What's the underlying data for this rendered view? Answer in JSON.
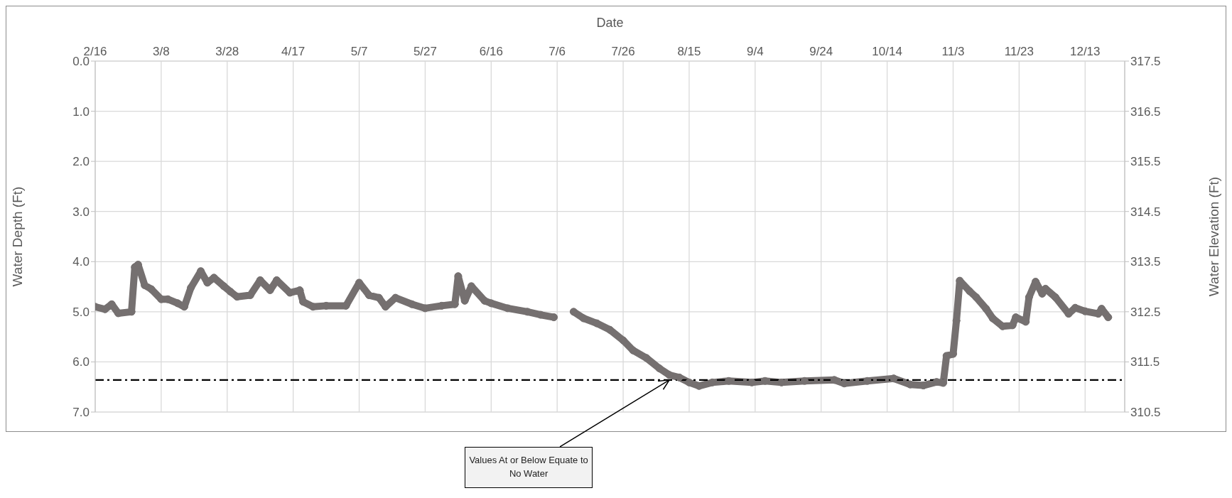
{
  "chart_data": {
    "type": "line",
    "xlabel": "Date",
    "ylabel": "Water Depth (Ft)",
    "y2label": "Water Elevation (Ft)",
    "x": [
      "--02-16",
      "--02-19",
      "--02-21",
      "--02-23",
      "--02-27",
      "--02-28",
      "--03-01",
      "--03-03",
      "--03-05",
      "--03-08",
      "--03-10",
      "--03-13",
      "--03-15",
      "--03-17",
      "--03-20",
      "--03-22",
      "--03-24",
      "--03-27",
      "--03-29",
      "--03-31",
      "--04-04",
      "--04-07",
      "--04-10",
      "--04-12",
      "--04-16",
      "--04-19",
      "--04-20",
      "--04-23",
      "--04-27",
      "--05-03",
      "--05-07",
      "--05-10",
      "--05-13",
      "--05-15",
      "--05-18",
      "--05-23",
      "--05-27",
      "--06-01",
      "--06-05",
      "--06-06",
      "--06-08",
      "--06-10",
      "--06-14",
      "--06-16",
      "--06-21",
      "--06-27",
      "--07-01",
      "--07-05",
      "--07-08",
      "--07-11",
      "--07-14",
      "--07-18",
      "--07-22",
      "--07-26",
      "--07-29",
      "--08-02",
      "--08-06",
      "--08-09",
      "--08-12",
      "--08-15",
      "--08-18",
      "--08-22",
      "--08-27",
      "--09-03",
      "--09-07",
      "--09-12",
      "--09-19",
      "--09-28",
      "--10-01",
      "--10-08",
      "--10-16",
      "--10-21",
      "--10-25",
      "--10-29",
      "--10-31",
      "--11-01",
      "--11-03",
      "--11-04",
      "--11-05",
      "--11-08",
      "--11-10",
      "--11-13",
      "--11-15",
      "--11-18",
      "--11-21",
      "--11-22",
      "--11-25",
      "--11-26",
      "--11-28",
      "--11-30",
      "--12-01",
      "--12-04",
      "--12-08",
      "--12-10",
      "--12-13",
      "--12-17",
      "--12-18",
      "--12-20"
    ],
    "series": [
      {
        "color": "#757070",
        "values": [
          4.9,
          4.95,
          4.85,
          5.03,
          5.0,
          4.11,
          4.06,
          4.47,
          4.55,
          4.75,
          4.75,
          4.83,
          4.9,
          4.52,
          4.19,
          4.42,
          4.32,
          4.49,
          4.6,
          4.7,
          4.67,
          4.37,
          4.57,
          4.37,
          4.62,
          4.57,
          4.8,
          4.9,
          4.88,
          4.88,
          4.42,
          4.67,
          4.72,
          4.9,
          4.72,
          4.85,
          4.93,
          4.88,
          4.85,
          4.29,
          4.78,
          4.49,
          4.78,
          4.83,
          4.93,
          5.0,
          5.06,
          5.11,
          null,
          5.0,
          5.13,
          5.23,
          5.36,
          5.57,
          5.77,
          5.92,
          6.13,
          6.26,
          6.31,
          6.41,
          6.48,
          6.41,
          6.38,
          6.41,
          6.38,
          6.41,
          6.38,
          6.36,
          6.43,
          6.38,
          6.33,
          6.45,
          6.47,
          6.4,
          6.42,
          5.88,
          5.84,
          5.18,
          4.38,
          4.59,
          4.71,
          4.94,
          5.13,
          5.29,
          5.27,
          5.11,
          5.2,
          4.71,
          4.4,
          4.64,
          4.54,
          4.71,
          5.04,
          4.92,
          4.99,
          5.04,
          4.94,
          5.11
        ]
      }
    ],
    "xlim": [
      "--02-16",
      "--12-25"
    ],
    "xticks": [
      {
        "value": "--02-16",
        "label": "2/16"
      },
      {
        "value": "--03-08",
        "label": "3/8"
      },
      {
        "value": "--03-28",
        "label": "3/28"
      },
      {
        "value": "--04-17",
        "label": "4/17"
      },
      {
        "value": "--05-07",
        "label": "5/7"
      },
      {
        "value": "--05-27",
        "label": "5/27"
      },
      {
        "value": "--06-16",
        "label": "6/16"
      },
      {
        "value": "--07-06",
        "label": "7/6"
      },
      {
        "value": "--07-26",
        "label": "7/26"
      },
      {
        "value": "--08-15",
        "label": "8/15"
      },
      {
        "value": "--09-04",
        "label": "9/4"
      },
      {
        "value": "--09-24",
        "label": "9/24"
      },
      {
        "value": "--10-14",
        "label": "10/14"
      },
      {
        "value": "--11-03",
        "label": "11/3"
      },
      {
        "value": "--11-23",
        "label": "11/23"
      },
      {
        "value": "--12-13",
        "label": "12/13"
      }
    ],
    "ylim": [
      7,
      0
    ],
    "yticks": [
      {
        "value": 0,
        "label": "0.0"
      },
      {
        "value": 1,
        "label": "1.0"
      },
      {
        "value": 2,
        "label": "2.0"
      },
      {
        "value": 3,
        "label": "3.0"
      },
      {
        "value": 4,
        "label": "4.0"
      },
      {
        "value": 5,
        "label": "5.0"
      },
      {
        "value": 6,
        "label": "6.0"
      },
      {
        "value": 7,
        "label": "7.0"
      }
    ],
    "y2lim": [
      310.5,
      317.5
    ],
    "y2ticks": [
      310.5,
      311.5,
      312.5,
      313.5,
      314.5,
      315.5,
      316.5,
      317.5
    ],
    "ref_lines": [
      {
        "axis": "y",
        "value": 6.36,
        "color": "#000000",
        "line_style": "dashdot"
      }
    ],
    "annotations": [
      {
        "text": "Values At or Below Equate to No Water",
        "x": "--08-09",
        "y": 6.36
      }
    ],
    "grid": true,
    "marker": "circle",
    "line_style": "solid"
  }
}
